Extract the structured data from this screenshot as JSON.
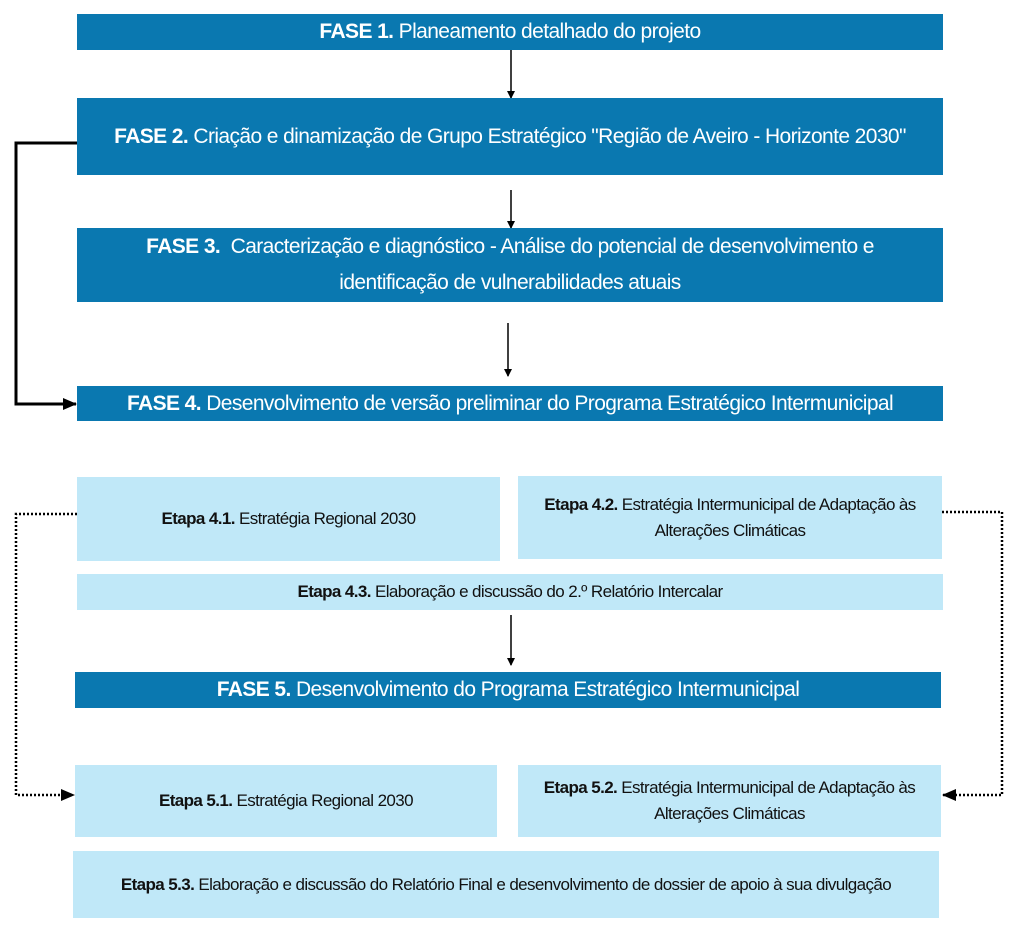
{
  "phases": [
    {
      "label": "FASE 1.",
      "text": "Planeamento detalhado do projeto"
    },
    {
      "label": "FASE 2.",
      "text": "Criação e dinamização de Grupo Estratégico \"Região de Aveiro - Horizonte 2030\""
    },
    {
      "label": "FASE 3.",
      "text": "Caracterização e diagnóstico - Análise do potencial de desenvolvimento e identificação de vulnerabilidades atuais"
    },
    {
      "label": "FASE 4.",
      "text": "Desenvolvimento de versão preliminar do Programa Estratégico Intermunicipal"
    },
    {
      "label": "FASE 5.",
      "text": "Desenvolvimento do Programa Estratégico Intermunicipal"
    }
  ],
  "steps": {
    "e41": {
      "label": "Etapa 4.1.",
      "text": "Estratégia Regional 2030"
    },
    "e42": {
      "label": "Etapa 4.2.",
      "text": "Estratégia Intermunicipal de Adaptação às Alterações Climáticas"
    },
    "e43": {
      "label": "Etapa 4.3.",
      "text": "Elaboração e discussão do 2.º Relatório Intercalar"
    },
    "e51": {
      "label": "Etapa 5.1.",
      "text": "Estratégia Regional 2030"
    },
    "e52": {
      "label": "Etapa 5.2.",
      "text": "Estratégia Intermunicipal de Adaptação às Alterações Climáticas"
    },
    "e53": {
      "label": "Etapa 5.3.",
      "text": "Elaboração e discussão do Relatório Final e desenvolvimento de dossier de apoio à sua divulgação"
    }
  },
  "colors": {
    "phase": "#0a78b0",
    "step": "#c0e8f8"
  }
}
